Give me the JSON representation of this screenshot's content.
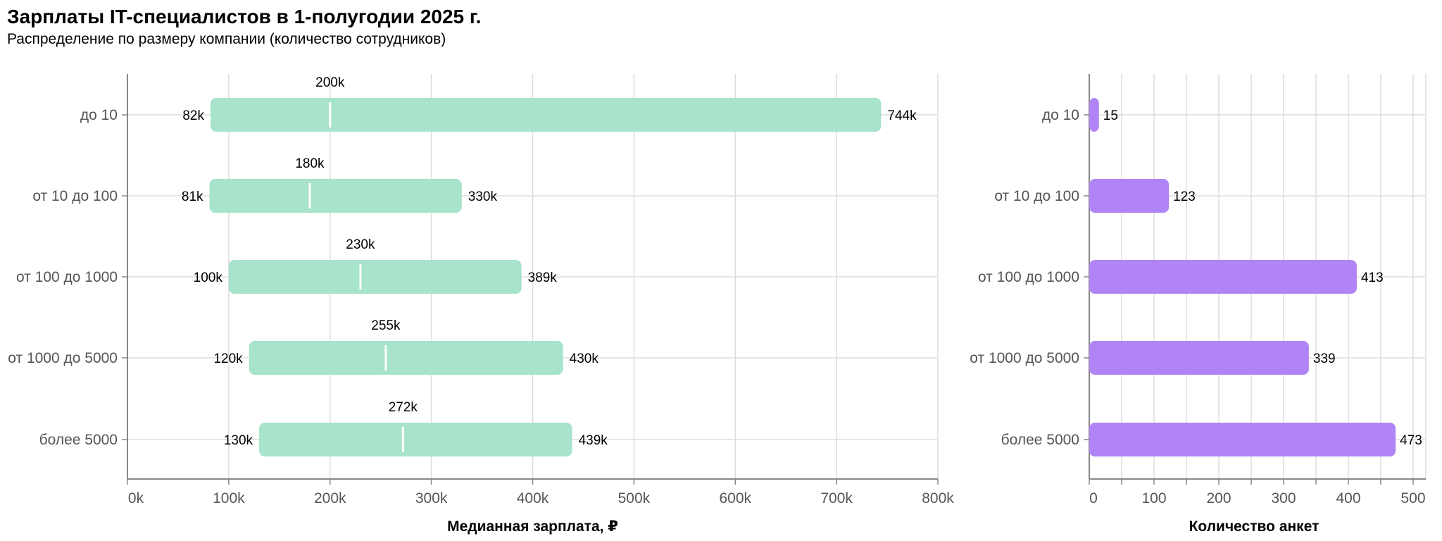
{
  "title": "Зарплаты IT-специалистов в 1-полугодии 2025 г.",
  "subtitle": "Распределение по размеру компании (количество сотрудников)",
  "colors": {
    "range_bar": "#a8e3cb",
    "count_bar": "#b084f5",
    "median_line": "#ffffff",
    "grid": "#dddddd",
    "axis": "#888888"
  },
  "chart_data": [
    {
      "type": "bar",
      "subtype": "range",
      "xlabel": "Медианная зарплата, ₽",
      "xlim": [
        0,
        800000
      ],
      "xticks": [
        "0k",
        "100k",
        "200k",
        "300k",
        "400k",
        "500k",
        "600k",
        "700k",
        "800k"
      ],
      "grid": true,
      "categories": [
        "до 10",
        "от 10 до 100",
        "от 100 до 1000",
        "от 1000 до 5000",
        "более 5000"
      ],
      "series": [
        {
          "name": "min",
          "values": [
            82000,
            81000,
            100000,
            120000,
            130000
          ],
          "labels": [
            "82k",
            "81k",
            "100k",
            "120k",
            "130k"
          ]
        },
        {
          "name": "median",
          "values": [
            200000,
            180000,
            230000,
            255000,
            272000
          ],
          "labels": [
            "200k",
            "180k",
            "230k",
            "255k",
            "272k"
          ]
        },
        {
          "name": "max",
          "values": [
            744000,
            330000,
            389000,
            430000,
            439000
          ],
          "labels": [
            "744k",
            "330k",
            "389k",
            "430k",
            "439k"
          ]
        }
      ]
    },
    {
      "type": "bar",
      "xlabel": "Количество анкет",
      "xlim": [
        0,
        500
      ],
      "xticks": [
        "0",
        "100",
        "200",
        "300",
        "400",
        "500"
      ],
      "grid": true,
      "categories": [
        "до 10",
        "от 10 до 100",
        "от 100 до 1000",
        "от 1000 до 5000",
        "более 5000"
      ],
      "values": [
        15,
        123,
        413,
        339,
        473
      ],
      "labels": [
        "15",
        "123",
        "413",
        "339",
        "473"
      ]
    }
  ]
}
